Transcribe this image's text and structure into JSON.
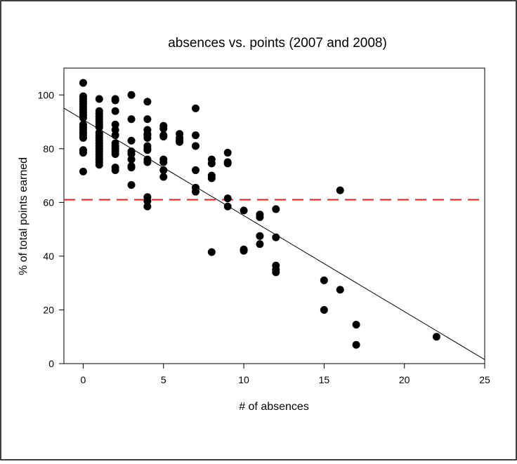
{
  "chart_data": {
    "type": "scatter",
    "title": "absences vs. points (2007 and 2008)",
    "xlabel": "# of absences",
    "ylabel": "% of total points earned",
    "xlim": [
      -1.2,
      25
    ],
    "ylim": [
      0,
      110
    ],
    "xticks": [
      0,
      5,
      10,
      15,
      20,
      25
    ],
    "yticks": [
      0,
      20,
      40,
      60,
      80,
      100
    ],
    "grid": false,
    "legend": "none",
    "colors": {
      "points": "#000000",
      "fit": "#000000",
      "threshold": "#d9241c"
    },
    "regression_line": {
      "x": [
        -1.2,
        25
      ],
      "y": [
        95.1,
        1.5
      ]
    },
    "reference_line": {
      "y": 61,
      "style": "dashed"
    },
    "points": [
      [
        0,
        104.5
      ],
      [
        0,
        99.5
      ],
      [
        0,
        98.5
      ],
      [
        0,
        97.5
      ],
      [
        0,
        96.5
      ],
      [
        0,
        95.5
      ],
      [
        0,
        94.5
      ],
      [
        0,
        93.5
      ],
      [
        0,
        92.5
      ],
      [
        0,
        91.5
      ],
      [
        0,
        89
      ],
      [
        0,
        88
      ],
      [
        0,
        87
      ],
      [
        0,
        86
      ],
      [
        0,
        85
      ],
      [
        0,
        84
      ],
      [
        0,
        79.5
      ],
      [
        0,
        78.5
      ],
      [
        0,
        71.5
      ],
      [
        1,
        98.5
      ],
      [
        1,
        94
      ],
      [
        1,
        93
      ],
      [
        1,
        92
      ],
      [
        1,
        91
      ],
      [
        1,
        90
      ],
      [
        1,
        89
      ],
      [
        1,
        88
      ],
      [
        1,
        86
      ],
      [
        1,
        85
      ],
      [
        1,
        84
      ],
      [
        1,
        83
      ],
      [
        1,
        82
      ],
      [
        1,
        81
      ],
      [
        1,
        80
      ],
      [
        1,
        79
      ],
      [
        1,
        78
      ],
      [
        1,
        77
      ],
      [
        1,
        76
      ],
      [
        1,
        75
      ],
      [
        1,
        74
      ],
      [
        2,
        98.5
      ],
      [
        2,
        98
      ],
      [
        2,
        94
      ],
      [
        2,
        89
      ],
      [
        2,
        87
      ],
      [
        2,
        85
      ],
      [
        2,
        82
      ],
      [
        2,
        81
      ],
      [
        2,
        80
      ],
      [
        2,
        79
      ],
      [
        2,
        78
      ],
      [
        2,
        73
      ],
      [
        2,
        72
      ],
      [
        3,
        100
      ],
      [
        3,
        91
      ],
      [
        3,
        83
      ],
      [
        3,
        79
      ],
      [
        3,
        78
      ],
      [
        3,
        76
      ],
      [
        3,
        73.5
      ],
      [
        3,
        73
      ],
      [
        3,
        66.5
      ],
      [
        4,
        97.5
      ],
      [
        4,
        91
      ],
      [
        4,
        87
      ],
      [
        4,
        85.5
      ],
      [
        4,
        85
      ],
      [
        4,
        84
      ],
      [
        4,
        81
      ],
      [
        4,
        80
      ],
      [
        4,
        79.5
      ],
      [
        4,
        76
      ],
      [
        4,
        75
      ],
      [
        4,
        62
      ],
      [
        4,
        60.5
      ],
      [
        4,
        58.5
      ],
      [
        5,
        88.5
      ],
      [
        5,
        87.5
      ],
      [
        5,
        85
      ],
      [
        5,
        84.5
      ],
      [
        5,
        76
      ],
      [
        5,
        75
      ],
      [
        5,
        72
      ],
      [
        5,
        69.5
      ],
      [
        6,
        85.5
      ],
      [
        6,
        84
      ],
      [
        6,
        83
      ],
      [
        6,
        82.5
      ],
      [
        7,
        95
      ],
      [
        7,
        85
      ],
      [
        7,
        81
      ],
      [
        7,
        72
      ],
      [
        7,
        65.5
      ],
      [
        7,
        64
      ],
      [
        8,
        76
      ],
      [
        8,
        74.5
      ],
      [
        8,
        70
      ],
      [
        8,
        69
      ],
      [
        8,
        41.5
      ],
      [
        9,
        78.5
      ],
      [
        9,
        75
      ],
      [
        9,
        74.5
      ],
      [
        9,
        61.5
      ],
      [
        9,
        58.5
      ],
      [
        10,
        57
      ],
      [
        10,
        42.5
      ],
      [
        10,
        42
      ],
      [
        11,
        55.5
      ],
      [
        11,
        54.5
      ],
      [
        11,
        47.5
      ],
      [
        11,
        44.5
      ],
      [
        12,
        57.5
      ],
      [
        12,
        47
      ],
      [
        12,
        36.5
      ],
      [
        12,
        35
      ],
      [
        12,
        34
      ],
      [
        15,
        31
      ],
      [
        15,
        20
      ],
      [
        16,
        64.5
      ],
      [
        16,
        27.5
      ],
      [
        17,
        14.5
      ],
      [
        17,
        7
      ],
      [
        22,
        10
      ]
    ]
  }
}
